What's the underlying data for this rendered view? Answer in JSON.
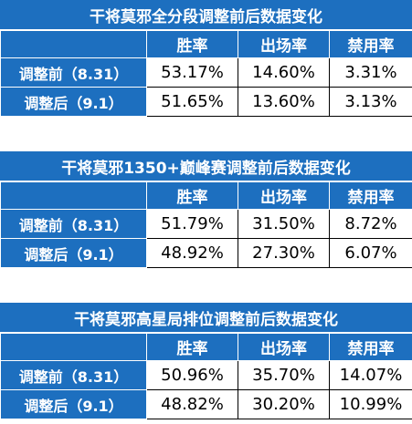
{
  "colors": {
    "header_bg": "#1d6fbf",
    "header_text": "#ffffff",
    "cell_bg": "#ffffff",
    "cell_text": "#000000"
  },
  "panels": [
    {
      "title": "干将莫邪全分段调整前后数据变化",
      "columns": [
        "",
        "胜率",
        "出场率",
        "禁用率"
      ],
      "rows": [
        {
          "label": "调整前（8.31）",
          "values": [
            "53.17%",
            "14.60%",
            "3.31%"
          ]
        },
        {
          "label": "调整后（9.1）",
          "values": [
            "51.65%",
            "13.60%",
            "3.13%"
          ]
        }
      ]
    },
    {
      "title": "干将莫邪1350+巅峰赛调整前后数据变化",
      "columns": [
        "",
        "胜率",
        "出场率",
        "禁用率"
      ],
      "rows": [
        {
          "label": "调整前（8.31）",
          "values": [
            "51.79%",
            "31.50%",
            "8.72%"
          ]
        },
        {
          "label": "调整后（9.1）",
          "values": [
            "48.92%",
            "27.30%",
            "6.07%"
          ]
        }
      ]
    },
    {
      "title": "干将莫邪高星局排位调整前后数据变化",
      "columns": [
        "",
        "胜率",
        "出场率",
        "禁用率"
      ],
      "rows": [
        {
          "label": "调整前（8.31）",
          "values": [
            "50.96%",
            "35.70%",
            "14.07%"
          ]
        },
        {
          "label": "调整后（9.1）",
          "values": [
            "48.82%",
            "30.20%",
            "10.99%"
          ]
        }
      ]
    }
  ]
}
